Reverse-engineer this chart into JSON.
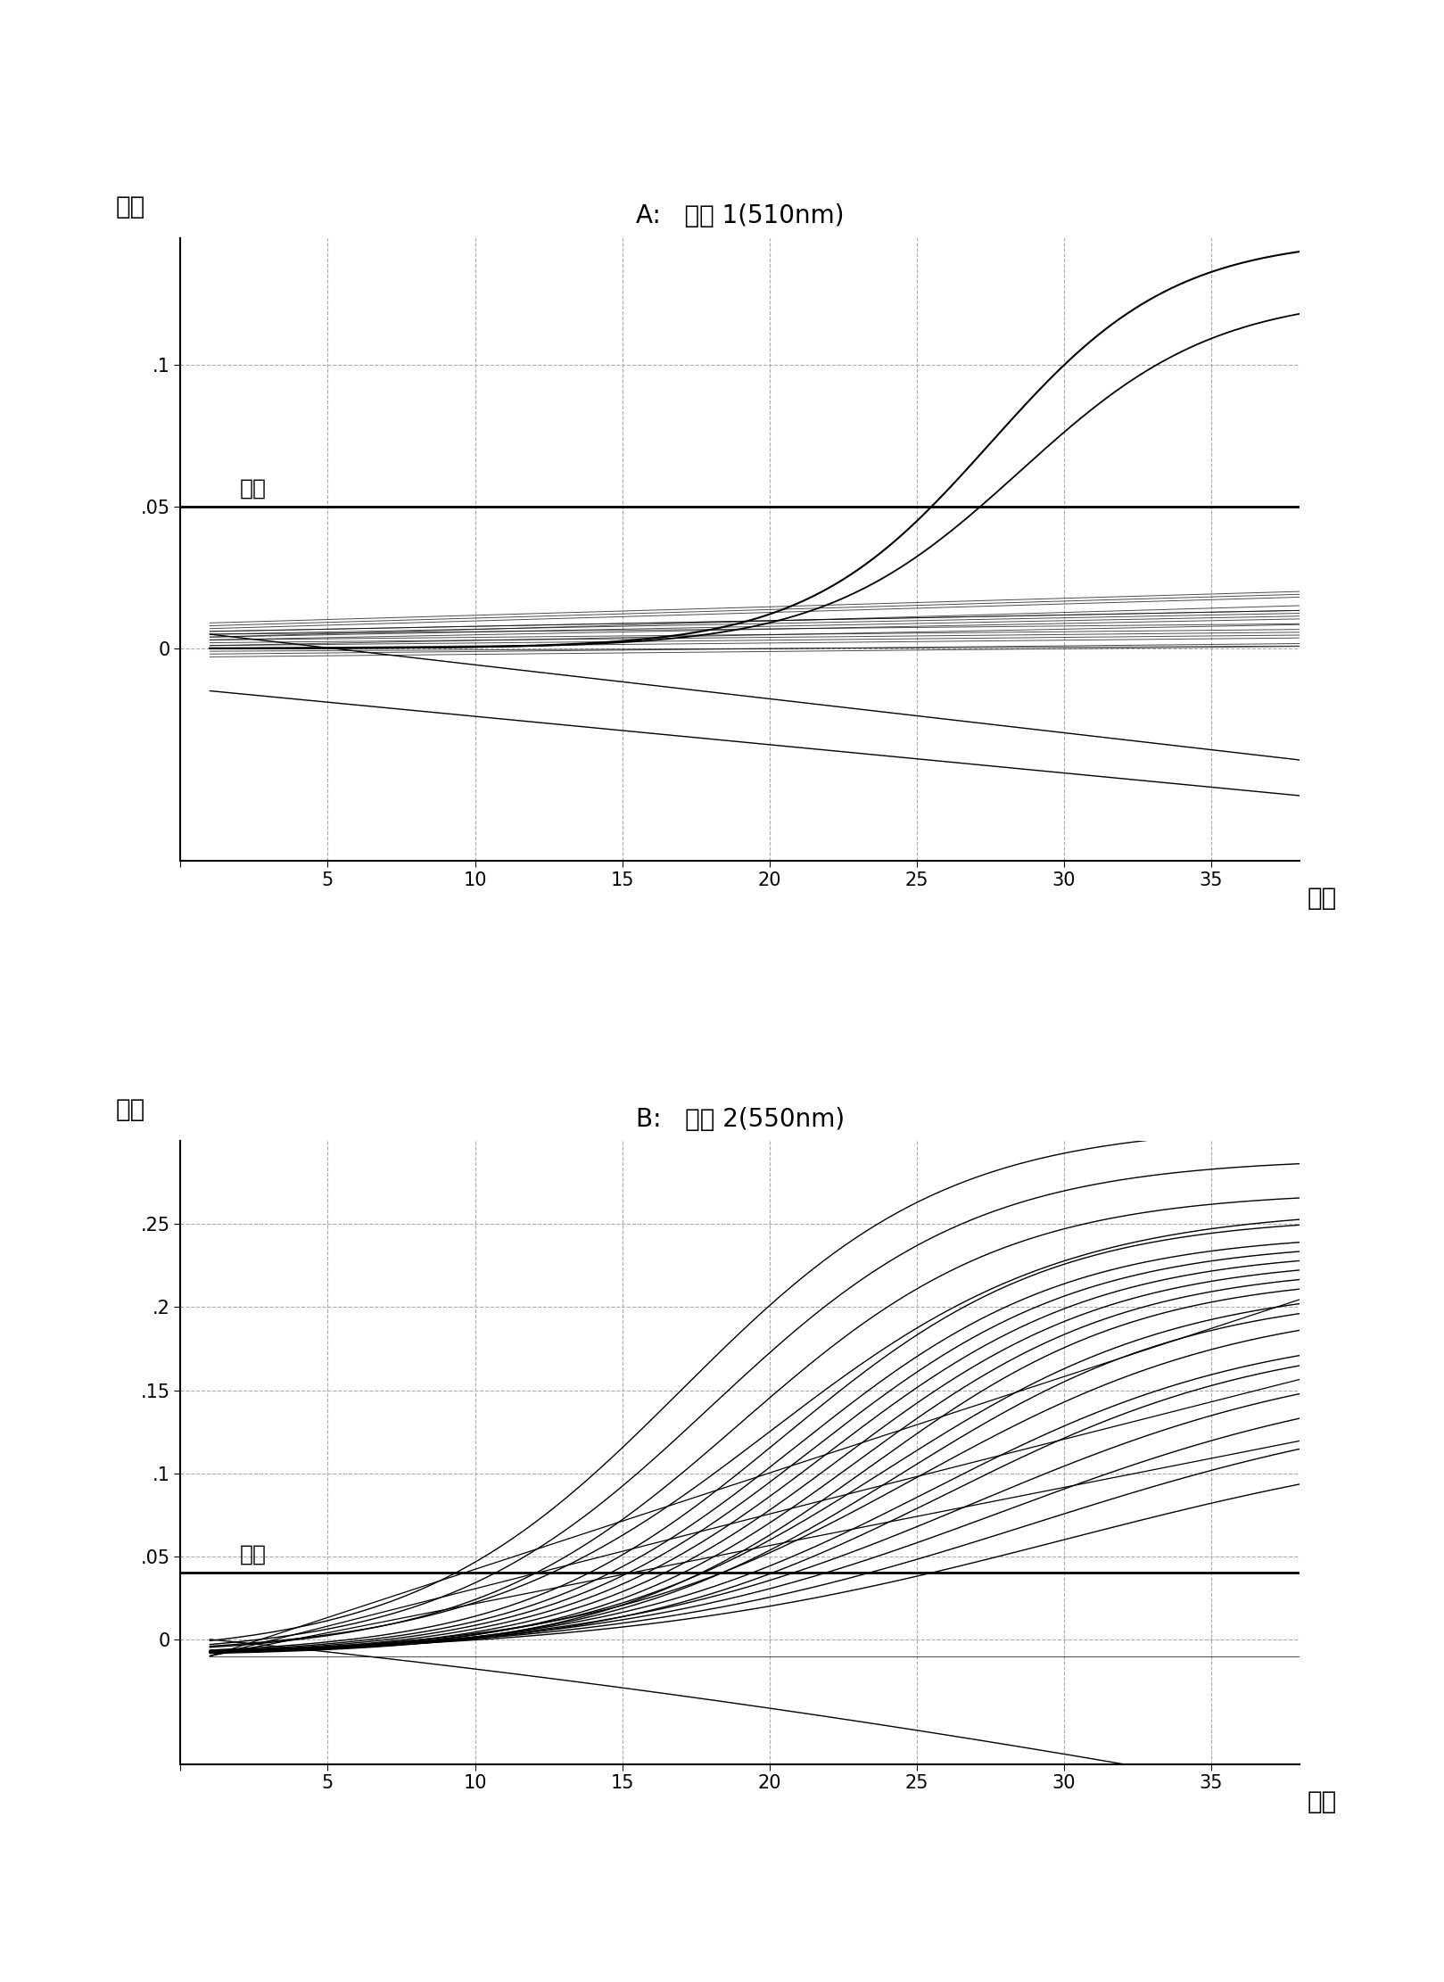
{
  "title_A": "A:   通道 1(510nm)",
  "title_B": "B:   通道 2(550nm)",
  "ylabel": "荧光",
  "xlabel": "循环",
  "threshold_label": "阀値",
  "background_color": "#ffffff",
  "text_color": "#000000",
  "threshold_A": 0.05,
  "threshold_B": 0.04,
  "xlim_A": [
    1,
    38
  ],
  "ylim_A": [
    -0.075,
    0.145
  ],
  "xlim_B": [
    1,
    38
  ],
  "ylim_B": [
    -0.075,
    0.3
  ],
  "xticks": [
    0,
    5,
    10,
    15,
    20,
    25,
    30,
    35
  ],
  "yticks_A": [
    0.0,
    0.05,
    0.1
  ],
  "yticks_B": [
    0.0,
    0.05,
    0.1,
    0.15,
    0.2,
    0.25
  ],
  "yticklabels_A": [
    "0",
    ".05",
    ".1"
  ],
  "yticklabels_B": [
    "0",
    ".05",
    ".1",
    ".15",
    ".2",
    ".25"
  ]
}
